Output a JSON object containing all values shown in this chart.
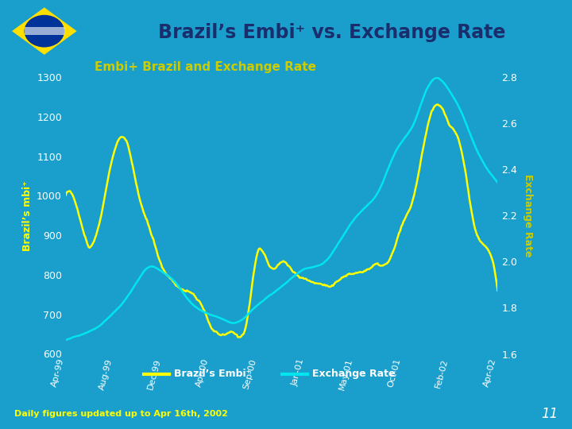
{
  "title": "Brazil’s Embi⁺ vs. Exchange Rate",
  "subtitle": "Embi+ Brazil and Exchange Rate",
  "ylabel_left": "Brazil’s mbi⁺",
  "ylabel_right": "Exchange Rate",
  "footer": "Daily figures updated up to Apr 16th, 2002",
  "page_number": "11",
  "bg_color_light": "#a8d4ea",
  "bg_color_chart": "#1a9fcc",
  "embi_color": "#ffff00",
  "exrate_color": "#00e5ee",
  "title_color": "#1a2e6e",
  "subtitle_color": "#cccc00",
  "left_axis_color": "#ffff00",
  "right_axis_color": "#cccc00",
  "footer_color": "#ffff00",
  "page_color": "white",
  "ylim_left": [
    600,
    1300
  ],
  "ylim_right": [
    1.6,
    2.8
  ],
  "yticks_left": [
    600,
    700,
    800,
    900,
    1000,
    1100,
    1200,
    1300
  ],
  "yticks_right": [
    1.6,
    1.8,
    2.0,
    2.2,
    2.4,
    2.6,
    2.8
  ],
  "xtick_labels": [
    "Apr-99",
    "Aug-99",
    "Dec-99",
    "Apr-00",
    "Sep-00",
    "Jan-01",
    "May-01",
    "Oct-01",
    "Feb-02",
    "Apr-02"
  ],
  "flag_green": "#009c3b",
  "flag_yellow": "#ffdf00",
  "flag_blue": "#003399",
  "flag_white": "#ffffff"
}
